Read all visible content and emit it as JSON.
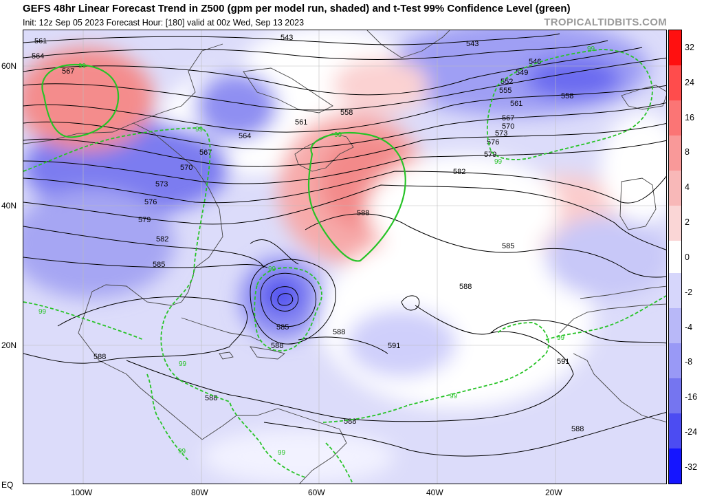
{
  "header": {
    "title": "GEFS 48hr Linear Forecast Trend in Z500 (gpm per model run, shaded) and t-Test 99% Confidence Level (green)",
    "subtitle": "Init: 12z Sep 05 2023   Forecast Hour: [180]   valid at 00z Wed, Sep 13 2023",
    "brand": "TROPICALTIDBITS.COM"
  },
  "map": {
    "lat_labels": [
      "60N",
      "40N",
      "20N",
      "EQ"
    ],
    "lon_labels": [
      "100W",
      "80W",
      "60W",
      "40W",
      "20W"
    ],
    "contour_labels": [
      "543",
      "543",
      "546",
      "549",
      "552",
      "555",
      "558",
      "558",
      "561",
      "561",
      "561",
      "564",
      "564",
      "567",
      "567",
      "567",
      "570",
      "570",
      "573",
      "573",
      "576",
      "576",
      "579",
      "579",
      "582",
      "582",
      "585",
      "585",
      "585",
      "588",
      "588",
      "588",
      "588",
      "588",
      "588",
      "588",
      "588",
      "591"
    ],
    "significance_label": "99",
    "colors": {
      "contour": "#000000",
      "significance": "#27c327",
      "coast": "#555555"
    }
  },
  "colorbar": {
    "labels": [
      "32",
      "24",
      "16",
      "8",
      "4",
      "2",
      "0",
      "-2",
      "-4",
      "-8",
      "-16",
      "-24",
      "-32"
    ],
    "colors": [
      "#ff1010",
      "#ff4c4c",
      "#fb7575",
      "#f99999",
      "#f8b8b8",
      "#fad6d6",
      "#ffffff",
      "#d6d6fb",
      "#b8b8f8",
      "#9999f6",
      "#7575f0",
      "#4c4cf2",
      "#1515ff"
    ]
  }
}
